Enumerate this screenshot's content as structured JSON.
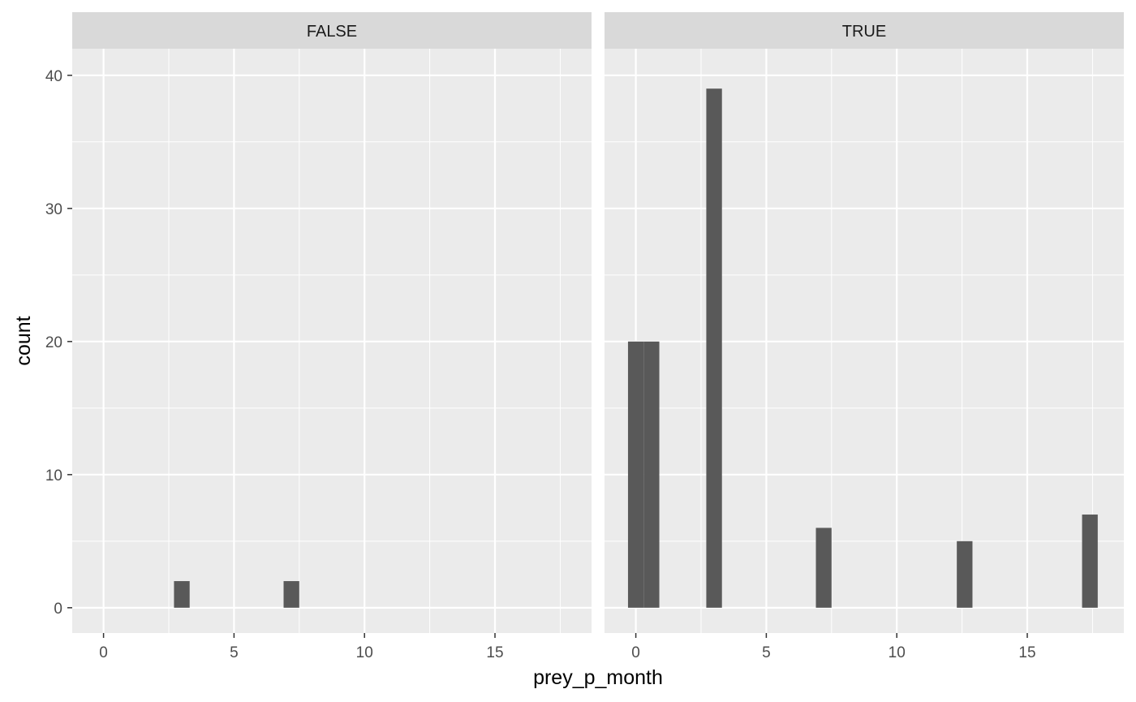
{
  "chart_data": {
    "type": "bar",
    "xlabel": "prey_p_month",
    "ylabel": "count",
    "xlim": [
      -1.2,
      18.7
    ],
    "ylim": [
      -1.9,
      42.0
    ],
    "x_ticks": [
      0,
      5,
      10,
      15
    ],
    "y_ticks": [
      0,
      10,
      20,
      30,
      40
    ],
    "bin_width": 0.6,
    "grid": true,
    "colors": {
      "panel_bg": "#EBEBEB",
      "strip_bg": "#D9D9D9",
      "bar_fill": "#595959",
      "grid": "#FFFFFF"
    },
    "panels": [
      {
        "strip_label": "FALSE",
        "bins": [
          {
            "x": 3.0,
            "count": 2
          },
          {
            "x": 7.2,
            "count": 2
          }
        ]
      },
      {
        "strip_label": "TRUE",
        "bins": [
          {
            "x": 0.0,
            "count": 20
          },
          {
            "x": 0.6,
            "count": 20
          },
          {
            "x": 3.0,
            "count": 39
          },
          {
            "x": 7.2,
            "count": 6
          },
          {
            "x": 12.6,
            "count": 5
          },
          {
            "x": 17.4,
            "count": 7
          }
        ]
      }
    ]
  }
}
